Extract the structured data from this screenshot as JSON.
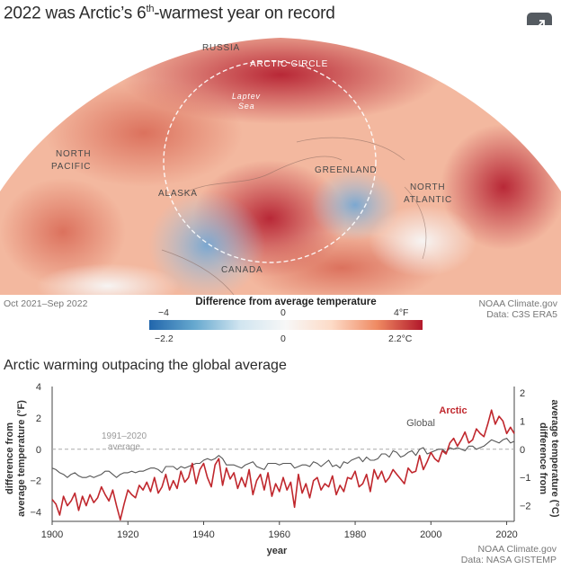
{
  "header": {
    "title_main": "2022 was Arctic’s 6",
    "title_sup": "th",
    "title_rest": "-warmest year on record",
    "expand_icon": "expand-icon"
  },
  "map": {
    "labels": {
      "russia": "RUSSIA",
      "arctic_circle": "ARCTIC CIRCLE",
      "laptev_1": "Laptev",
      "laptev_2": "Sea",
      "north_pacific_1": "NORTH",
      "north_pacific_2": "PACIFIC",
      "greenland": "GREENLAND",
      "north_atlantic_1": "NORTH",
      "north_atlantic_2": "ATLANTIC",
      "alaska": "ALASKA",
      "canada": "CANADA"
    },
    "period": "Oct 2021–Sep 2022",
    "credit_1": "NOAA Climate.gov",
    "credit_2": "Data: C3S ERA5"
  },
  "legend": {
    "title": "Difference from average temperature",
    "f_min": "−4",
    "f_mid": "0",
    "f_max": "4°F",
    "c_min": "−2.2",
    "c_mid": "0",
    "c_max": "2.2°C"
  },
  "chart_data": {
    "type": "line",
    "title": "Arctic warming outpacing the global average",
    "xlabel": "year",
    "ylabel_left_1": "difference from",
    "ylabel_left_2": "average temperature (°F)",
    "ylabel_right_1": "difference from",
    "ylabel_right_2": "average temperature (°C)",
    "baseline_label_1": "1991–2020",
    "baseline_label_2": "average",
    "xlim": [
      1900,
      2022
    ],
    "ylim": [
      -4.6,
      4
    ],
    "x_ticks": [
      1900,
      1920,
      1940,
      1960,
      1980,
      2000,
      2020
    ],
    "x_tick_labels": [
      "1900",
      "1920",
      "1940",
      "1960",
      "1980",
      "2000",
      "2020"
    ],
    "y_ticks_left": [
      4,
      2,
      0,
      -2,
      -4
    ],
    "y_tick_labels_left": [
      "4",
      "2",
      "0",
      "−2",
      "−4"
    ],
    "y_ticks_right_c": [
      2,
      1,
      0,
      -1,
      -2
    ],
    "y_tick_labels_right": [
      "2",
      "1",
      "0",
      "−1",
      "−2"
    ],
    "grid": false,
    "series": [
      {
        "name": "Arctic",
        "color": "#c0272d",
        "x_start": 1900,
        "values": [
          -3.2,
          -3.5,
          -4.2,
          -3.0,
          -3.6,
          -3.3,
          -2.8,
          -3.9,
          -3.0,
          -3.6,
          -2.9,
          -3.4,
          -3.1,
          -2.4,
          -2.9,
          -3.3,
          -2.6,
          -3.6,
          -4.5,
          -3.5,
          -2.6,
          -2.9,
          -3.1,
          -2.3,
          -2.6,
          -2.1,
          -2.7,
          -1.8,
          -2.8,
          -2.4,
          -1.6,
          -2.6,
          -2.0,
          -2.5,
          -1.4,
          -2.1,
          -1.8,
          -0.9,
          -2.2,
          -1.3,
          -0.9,
          -1.8,
          -2.4,
          -1.0,
          -0.6,
          -2.3,
          -1.2,
          -1.9,
          -1.5,
          -2.5,
          -1.8,
          -2.4,
          -1.3,
          -2.9,
          -2.0,
          -1.6,
          -2.6,
          -1.5,
          -3.0,
          -2.2,
          -2.7,
          -1.8,
          -2.6,
          -2.1,
          -3.7,
          -1.6,
          -2.8,
          -2.2,
          -3.1,
          -2.0,
          -1.8,
          -2.6,
          -2.2,
          -2.4,
          -1.7,
          -2.9,
          -2.3,
          -2.7,
          -1.8,
          -1.9,
          -1.4,
          -2.4,
          -2.2,
          -1.6,
          -2.7,
          -1.3,
          -1.9,
          -1.4,
          -2.1,
          -1.8,
          -1.3,
          -1.6,
          -1.9,
          -2.2,
          -1.2,
          -1.5,
          -1.4,
          -0.4,
          -1.3,
          -0.8,
          -0.2,
          -0.6,
          -0.8,
          -0.1,
          -0.3,
          0.4,
          0.7,
          0.2,
          0.6,
          1.1,
          0.4,
          0.6,
          1.3,
          1.0,
          0.8,
          1.6,
          2.5,
          1.6,
          2.1,
          1.8,
          1.0,
          1.4,
          1.0
        ]
      },
      {
        "name": "Global",
        "color": "#555555",
        "x_start": 1900,
        "values": [
          -1.2,
          -1.3,
          -1.5,
          -1.6,
          -1.8,
          -1.6,
          -1.5,
          -1.7,
          -1.8,
          -1.8,
          -1.7,
          -1.8,
          -1.7,
          -1.6,
          -1.4,
          -1.4,
          -1.6,
          -1.8,
          -1.6,
          -1.5,
          -1.5,
          -1.4,
          -1.5,
          -1.4,
          -1.4,
          -1.3,
          -1.2,
          -1.2,
          -1.3,
          -1.5,
          -1.1,
          -1.1,
          -1.1,
          -1.3,
          -1.1,
          -1.2,
          -1.1,
          -1.0,
          -0.9,
          -0.9,
          -0.7,
          -0.6,
          -0.7,
          -0.6,
          -0.4,
          -0.6,
          -1.0,
          -1.0,
          -1.0,
          -1.1,
          -1.2,
          -1.0,
          -0.9,
          -0.8,
          -1.1,
          -1.2,
          -1.3,
          -0.9,
          -0.9,
          -0.9,
          -1.0,
          -0.9,
          -0.9,
          -0.9,
          -1.2,
          -1.1,
          -1.0,
          -1.0,
          -1.1,
          -0.8,
          -0.9,
          -1.1,
          -0.9,
          -0.7,
          -1.1,
          -1.0,
          -1.2,
          -0.8,
          -0.9,
          -0.7,
          -0.6,
          -0.5,
          -0.8,
          -0.5,
          -0.7,
          -0.7,
          -0.6,
          -0.3,
          -0.3,
          -0.5,
          -0.1,
          -0.2,
          -0.5,
          -0.4,
          -0.2,
          -0.1,
          -0.4,
          0.0,
          0.1,
          -0.3,
          -0.2,
          -0.1,
          0.0,
          0.0,
          -0.2,
          0.1,
          0.0,
          0.1,
          0.0,
          -0.1,
          0.2,
          0.2,
          0.0,
          0.1,
          0.2,
          0.4,
          0.6,
          0.5,
          0.4,
          0.6,
          0.7,
          0.4,
          0.5
        ]
      }
    ],
    "credit_1": "NOAA Climate.gov",
    "credit_2": "Data: NASA GISTEMP"
  }
}
